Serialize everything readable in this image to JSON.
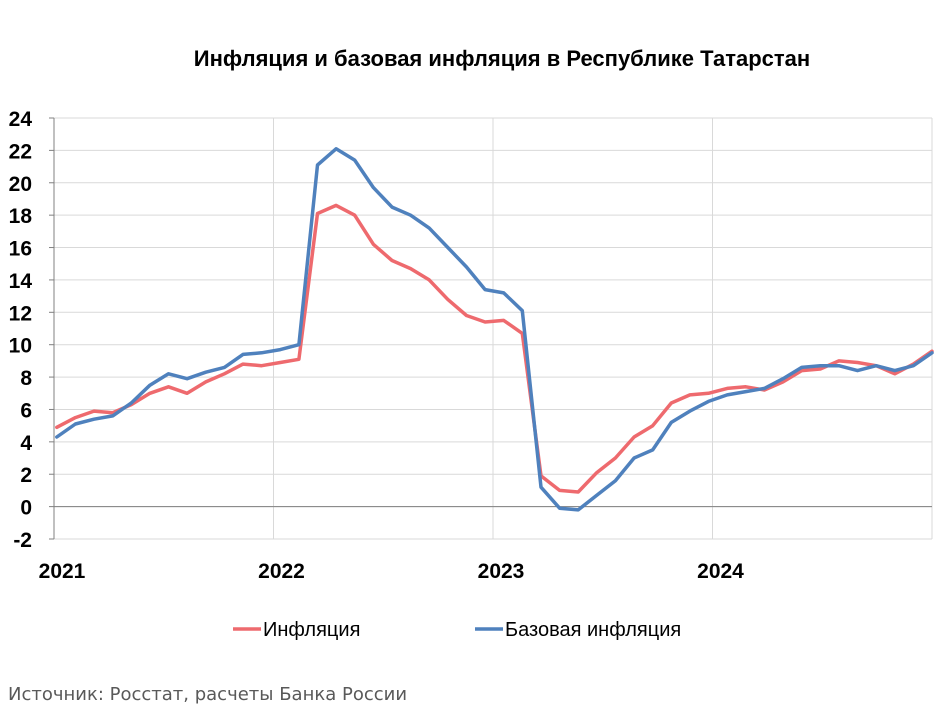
{
  "source_note": "Источник: Росстат, расчеты Банка России",
  "chart_data": {
    "type": "line",
    "title": "Инфляция и базовая инфляция в Республике Татарстан",
    "xlabel": "",
    "ylabel": "",
    "ylim": [
      -2,
      24
    ],
    "yticks": [
      -2,
      0,
      2,
      4,
      6,
      8,
      10,
      12,
      14,
      16,
      18,
      20,
      22,
      24
    ],
    "x_tick_labels": [
      "2021",
      "2022",
      "2023",
      "2024"
    ],
    "x_start_year": 2021,
    "x_months_total": 48,
    "grid": true,
    "legend_position": "bottom",
    "series": [
      {
        "name": "Инфляция",
        "color": "#ee6a6e",
        "values": [
          4.9,
          5.5,
          5.9,
          5.8,
          6.3,
          7.0,
          7.4,
          7.0,
          7.7,
          8.2,
          8.8,
          8.7,
          8.9,
          9.1,
          18.1,
          18.6,
          18.0,
          16.2,
          15.2,
          14.7,
          14.0,
          12.8,
          11.8,
          11.4,
          11.5,
          10.7,
          1.9,
          1.0,
          0.9,
          2.1,
          3.0,
          4.3,
          5.0,
          6.4,
          6.9,
          7.0,
          7.3,
          7.4,
          7.2,
          7.7,
          8.4,
          8.5,
          9.0,
          8.9,
          8.7,
          8.2,
          8.8,
          9.6
        ]
      },
      {
        "name": "Базовая инфляция",
        "color": "#4f81bd",
        "values": [
          4.3,
          5.1,
          5.4,
          5.6,
          6.4,
          7.5,
          8.2,
          7.9,
          8.3,
          8.6,
          9.4,
          9.5,
          9.7,
          10.0,
          21.1,
          22.1,
          21.4,
          19.7,
          18.5,
          18.0,
          17.2,
          16.0,
          14.8,
          13.4,
          13.2,
          12.1,
          1.2,
          -0.1,
          -0.2,
          0.7,
          1.6,
          3.0,
          3.5,
          5.2,
          5.9,
          6.5,
          6.9,
          7.1,
          7.3,
          7.9,
          8.6,
          8.7,
          8.7,
          8.4,
          8.7,
          8.4,
          8.7,
          9.5
        ]
      }
    ]
  }
}
